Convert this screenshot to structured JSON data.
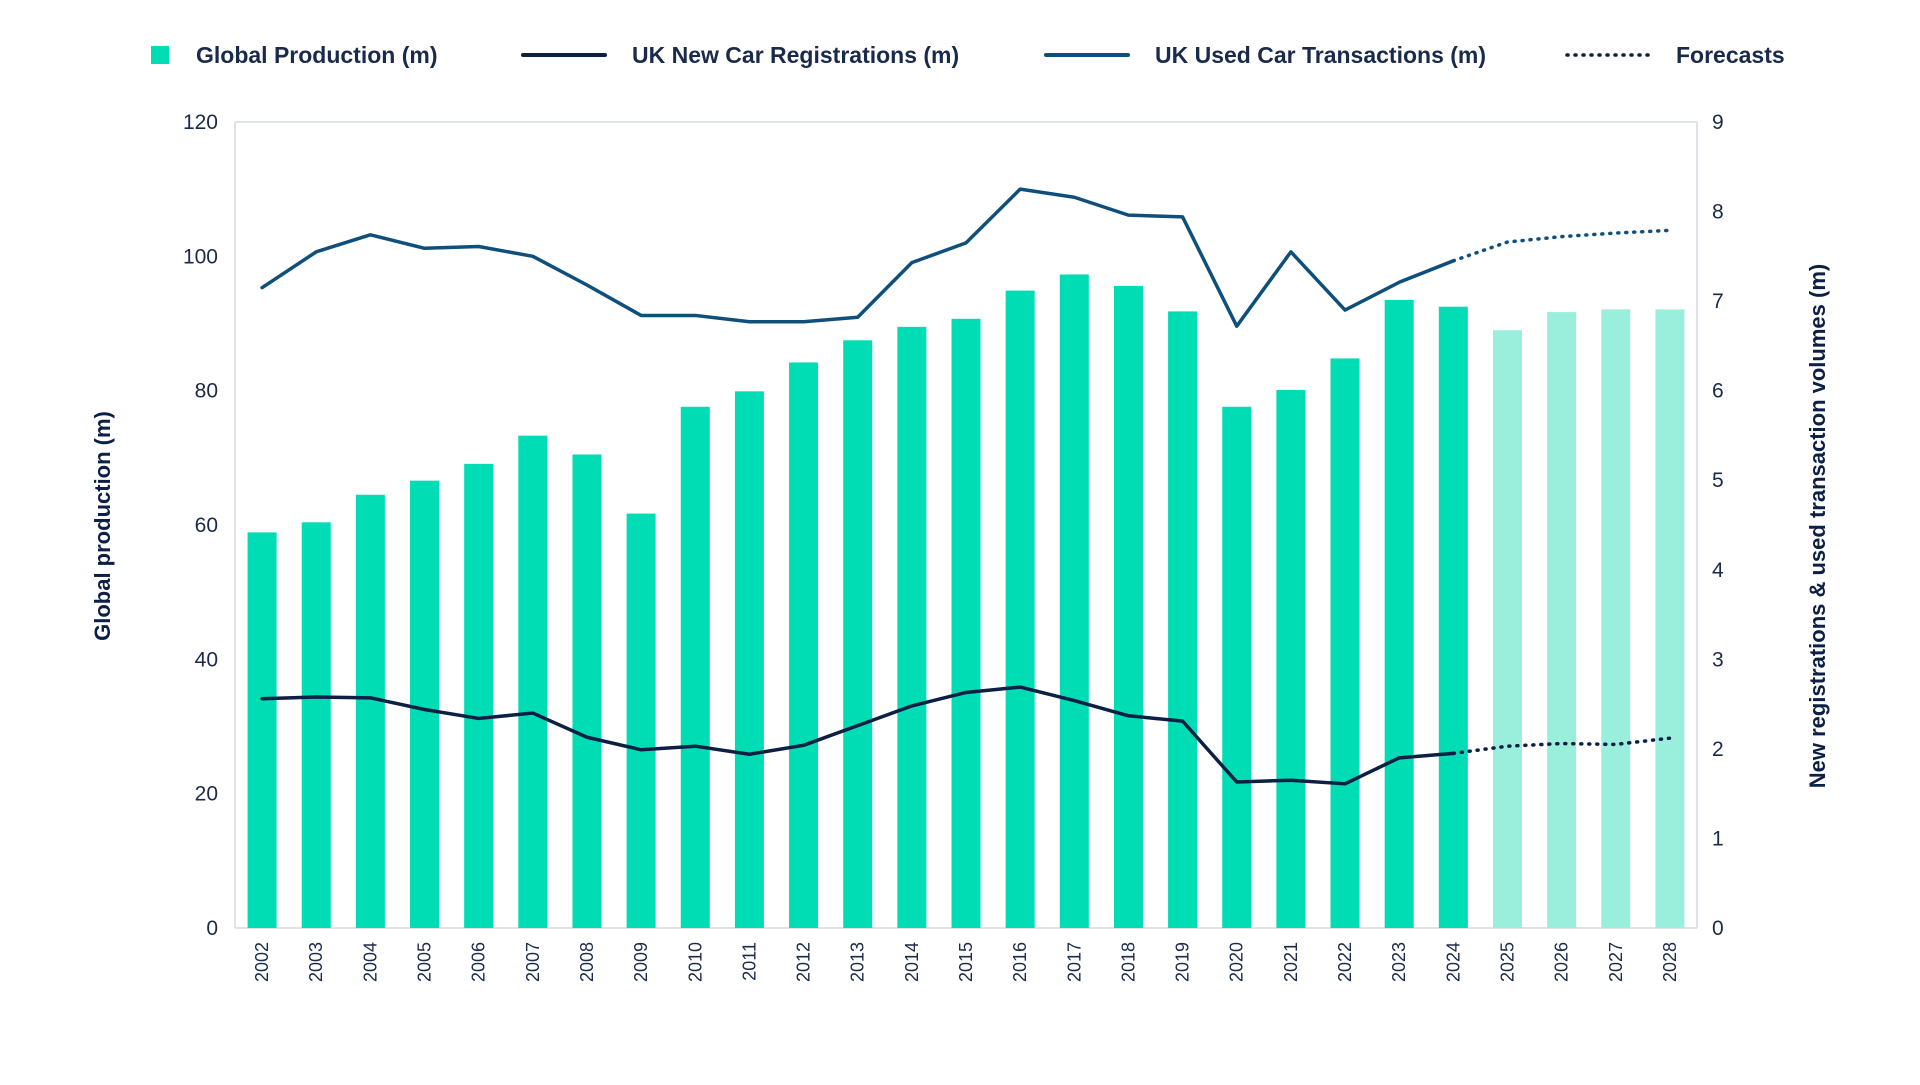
{
  "chart_data": {
    "type": "bar",
    "categories": [
      "2002",
      "2003",
      "2004",
      "2005",
      "2006",
      "2007",
      "2008",
      "2009",
      "2010",
      "2011",
      "2012",
      "2013",
      "2014",
      "2015",
      "2016",
      "2017",
      "2018",
      "2019",
      "2020",
      "2021",
      "2022",
      "2023",
      "2024",
      "2025",
      "2026",
      "2027",
      "2028"
    ],
    "forecast_start": "2025",
    "ylabel": "Global production (m)",
    "y2label": "New registrations & used transaction volumes (m)",
    "ylim": [
      0,
      120
    ],
    "y2lim": [
      0,
      9
    ],
    "yticks": [
      0,
      20,
      40,
      60,
      80,
      100,
      120
    ],
    "y2ticks": [
      0,
      1,
      2,
      3,
      4,
      5,
      6,
      7,
      8,
      9
    ],
    "grid": false,
    "legend_position": "top",
    "legend": [
      {
        "label": "Global Production (m)",
        "kind": "bar"
      },
      {
        "label": "UK New Car Registrations (m)",
        "kind": "line-dark"
      },
      {
        "label": "UK Used Car Transactions (m)",
        "kind": "line-blue"
      },
      {
        "label": "Forecasts",
        "kind": "dotted"
      }
    ],
    "series": [
      {
        "name": "Global Production (m)",
        "type": "bar",
        "axis": "left",
        "values": [
          58.9,
          60.4,
          64.5,
          66.6,
          69.1,
          73.3,
          70.5,
          61.7,
          77.6,
          79.9,
          84.2,
          87.5,
          89.5,
          90.7,
          94.9,
          97.3,
          95.6,
          91.8,
          77.6,
          80.1,
          84.8,
          93.5,
          92.5,
          89.0,
          91.7,
          92.1,
          92.1
        ]
      },
      {
        "name": "UK New Car Registrations (m)",
        "type": "line",
        "axis": "right",
        "values": [
          2.56,
          2.58,
          2.57,
          2.44,
          2.34,
          2.4,
          2.13,
          1.99,
          2.03,
          1.94,
          2.04,
          2.26,
          2.48,
          2.63,
          2.69,
          2.54,
          2.37,
          2.31,
          1.63,
          1.65,
          1.61,
          1.9,
          1.95,
          2.03,
          2.06,
          2.05,
          2.12
        ]
      },
      {
        "name": "UK Used Car Transactions (m)",
        "type": "line",
        "axis": "right",
        "values": [
          7.15,
          7.55,
          7.74,
          7.59,
          7.61,
          7.5,
          7.18,
          6.84,
          6.84,
          6.77,
          6.77,
          6.82,
          7.43,
          7.65,
          8.25,
          8.16,
          7.96,
          7.94,
          6.72,
          7.55,
          6.9,
          7.21,
          7.45,
          7.66,
          7.72,
          7.76,
          7.79
        ]
      }
    ],
    "colors": {
      "bar": "#00dcb4",
      "bar_forecast": "#9aeedc",
      "line_new": "#0c1f44",
      "line_used": "#0e4f7c",
      "axis": "#d4dae0",
      "text": "#1a2a4a"
    }
  }
}
